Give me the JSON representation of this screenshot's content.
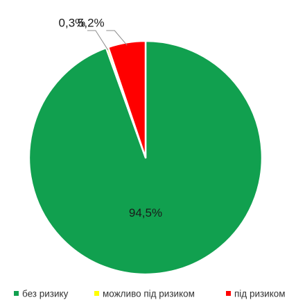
{
  "chart_data": {
    "type": "pie",
    "start_angle_deg": 0,
    "direction": "clockwise",
    "slices": [
      {
        "label": "без ризику",
        "value": 94.5,
        "display": "94,5%",
        "color": "#11a04f"
      },
      {
        "label": "можливо під ризиком",
        "value": 0.3,
        "display": "0,3%",
        "color": "#ffff00"
      },
      {
        "label": "під ризиком",
        "value": 5.2,
        "display": "5,2%",
        "color": "#ff0000"
      }
    ],
    "legend_position": "bottom",
    "grid": false
  }
}
